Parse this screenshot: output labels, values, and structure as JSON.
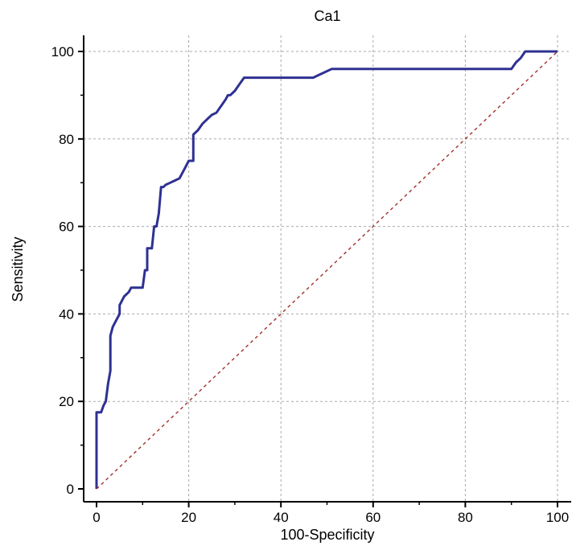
{
  "chart_data": {
    "type": "line",
    "title": "Ca1",
    "xlabel": "100-Specificity",
    "ylabel": "Sensitivity",
    "xlim": [
      0,
      100
    ],
    "ylim": [
      0,
      100
    ],
    "x_ticks": [
      0,
      20,
      40,
      60,
      80,
      100
    ],
    "y_ticks": [
      0,
      20,
      40,
      60,
      80,
      100
    ],
    "grid": true,
    "colors": {
      "roc_curve": "#2e3192",
      "reference_line": "#a0302a",
      "grid": "#a9a9a9",
      "axis": "#000000"
    },
    "series": [
      {
        "style": "solid",
        "x": [
          0,
          0,
          0.5,
          1,
          1.5,
          2,
          2.5,
          3,
          3,
          3.5,
          4,
          4.5,
          5,
          5,
          6,
          7,
          7.5,
          8,
          9,
          10,
          10.5,
          11,
          11,
          12,
          12.5,
          13,
          13.5,
          14,
          14.5,
          15,
          16,
          17,
          18,
          19,
          20,
          21,
          21,
          22,
          23,
          24,
          25,
          26,
          27,
          28,
          28.5,
          29,
          30,
          31,
          32,
          47,
          48,
          51,
          52,
          90,
          91,
          92,
          93,
          100
        ],
        "y": [
          0,
          17.5,
          17.5,
          17.5,
          19,
          20,
          24,
          27,
          35,
          37,
          38,
          39,
          40,
          42,
          44,
          45,
          46,
          46,
          46,
          46,
          50,
          50,
          55,
          55,
          60,
          60,
          63,
          69,
          69,
          69.5,
          70,
          70.5,
          71,
          73,
          75,
          75,
          81,
          82,
          83.5,
          84.5,
          85.5,
          86,
          87.5,
          89,
          90,
          90,
          91,
          92.5,
          94,
          94,
          94.5,
          96,
          96,
          96,
          97.5,
          98.5,
          100,
          100
        ]
      },
      {
        "style": "dashed",
        "x": [
          0,
          100
        ],
        "y": [
          0,
          100
        ]
      }
    ]
  }
}
